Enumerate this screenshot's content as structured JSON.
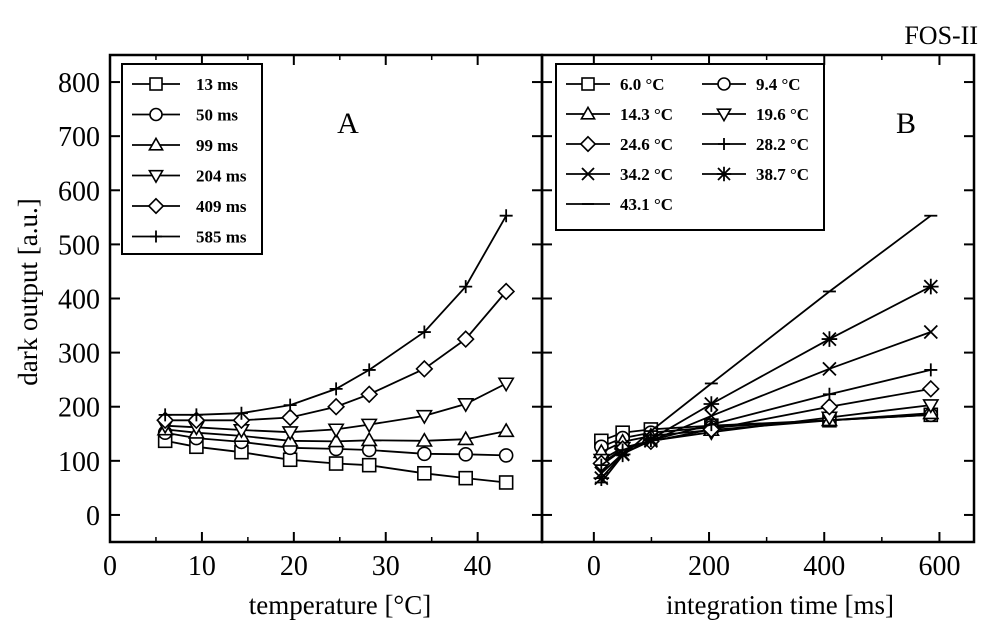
{
  "figure": {
    "title": "FOS-II",
    "ylabel": "dark output [a.u.]"
  },
  "chart_data": [
    {
      "type": "line",
      "panel_label": "A",
      "xlabel": "temperature [°C]",
      "ylabel": "dark output [a.u.]",
      "xlim": [
        0,
        47
      ],
      "ylim": [
        -50,
        850
      ],
      "xticks": [
        0,
        10,
        20,
        30,
        40
      ],
      "yticks": [
        0,
        100,
        200,
        300,
        400,
        500,
        600,
        700,
        800
      ],
      "legend_placement": "top-left",
      "x": [
        6.0,
        9.4,
        14.3,
        19.6,
        24.6,
        28.2,
        34.2,
        38.7,
        43.1
      ],
      "series": [
        {
          "name": "13 ms",
          "marker": "square",
          "values": [
            137,
            126,
            116,
            102,
            95,
            92,
            77,
            68,
            60
          ]
        },
        {
          "name": "50 ms",
          "marker": "circle",
          "values": [
            152,
            142,
            135,
            124,
            122,
            120,
            113,
            112,
            110
          ]
        },
        {
          "name": "99 ms",
          "marker": "triangle-up",
          "values": [
            158,
            152,
            146,
            137,
            136,
            138,
            137,
            140,
            155
          ]
        },
        {
          "name": "204 ms",
          "marker": "triangle-down",
          "values": [
            165,
            162,
            157,
            153,
            158,
            167,
            183,
            205,
            243
          ]
        },
        {
          "name": "409 ms",
          "marker": "diamond",
          "values": [
            175,
            175,
            175,
            180,
            200,
            223,
            270,
            325,
            413
          ]
        },
        {
          "name": "585 ms",
          "marker": "plus",
          "values": [
            185,
            185,
            188,
            203,
            233,
            268,
            338,
            422,
            553
          ]
        }
      ]
    },
    {
      "type": "line",
      "panel_label": "B",
      "xlabel": "integration time [ms]",
      "xlim": [
        -90,
        660
      ],
      "ylim": [
        -50,
        850
      ],
      "xticks": [
        0,
        200,
        400,
        600
      ],
      "legend_placement": "top-left",
      "x": [
        13,
        50,
        99,
        204,
        409,
        585
      ],
      "series": [
        {
          "name": "6.0 °C",
          "marker": "square",
          "values": [
            137,
            152,
            158,
            165,
            175,
            185
          ]
        },
        {
          "name": "9.4 °C",
          "marker": "circle",
          "values": [
            126,
            142,
            152,
            162,
            175,
            185
          ]
        },
        {
          "name": "14.3 °C",
          "marker": "triangle-up",
          "values": [
            116,
            135,
            146,
            157,
            175,
            188
          ]
        },
        {
          "name": "19.6 °C",
          "marker": "triangle-down",
          "values": [
            102,
            124,
            137,
            153,
            180,
            203
          ]
        },
        {
          "name": "24.6 °C",
          "marker": "diamond",
          "values": [
            95,
            122,
            136,
            158,
            200,
            233
          ]
        },
        {
          "name": "28.2 °C",
          "marker": "plus",
          "values": [
            92,
            120,
            138,
            167,
            223,
            268
          ]
        },
        {
          "name": "34.2 °C",
          "marker": "x",
          "values": [
            77,
            113,
            137,
            183,
            270,
            338
          ]
        },
        {
          "name": "38.7 °C",
          "marker": "asterisk",
          "values": [
            68,
            112,
            140,
            205,
            325,
            422
          ]
        },
        {
          "name": "43.1 °C",
          "marker": "dash",
          "values": [
            60,
            110,
            155,
            243,
            413,
            553
          ]
        }
      ]
    }
  ]
}
